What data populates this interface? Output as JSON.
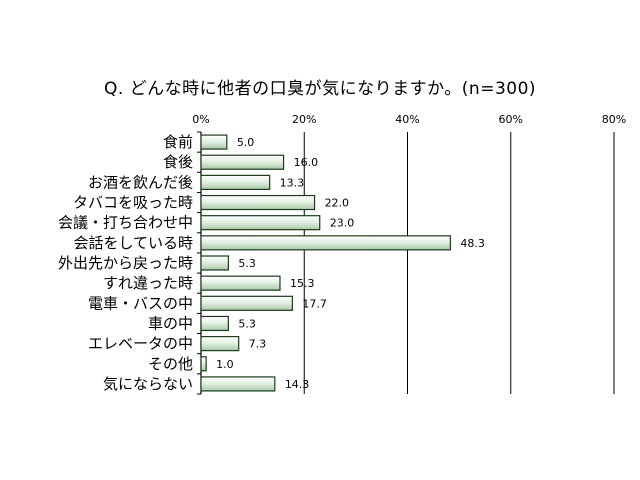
{
  "chart_data": {
    "type": "bar",
    "orientation": "horizontal",
    "title": "Q. どんな時に他者の口臭が気になりますか。(n=300)",
    "categories": [
      "食前",
      "食後",
      "お酒を飲んだ後",
      "タバコを吸った時",
      "会議・打ち合わせ中",
      "会話をしている時",
      "外出先から戻った時",
      "すれ違った時",
      "電車・バスの中",
      "車の中",
      "エレベータの中",
      "その他",
      "気にならない"
    ],
    "values": [
      5.0,
      16.0,
      13.3,
      22.0,
      23.0,
      48.3,
      5.3,
      15.3,
      17.7,
      5.3,
      7.3,
      1.0,
      14.3
    ],
    "value_labels": [
      "5.0",
      "16.0",
      "13.3",
      "22.0",
      "23.0",
      "48.3",
      "5.3",
      "15.3",
      "17.7",
      "5.3",
      "7.3",
      "1.0",
      "14.3"
    ],
    "xlim": [
      0,
      80
    ],
    "x_ticks": [
      "0%",
      "20%",
      "40%",
      "60%",
      "80%"
    ],
    "x_tick_values": [
      0,
      20,
      40,
      60,
      80
    ],
    "xaxis_position": "top",
    "grid": true,
    "bar_color": "#d9ebd9",
    "bar_edge_color": "#1c3a1c"
  }
}
